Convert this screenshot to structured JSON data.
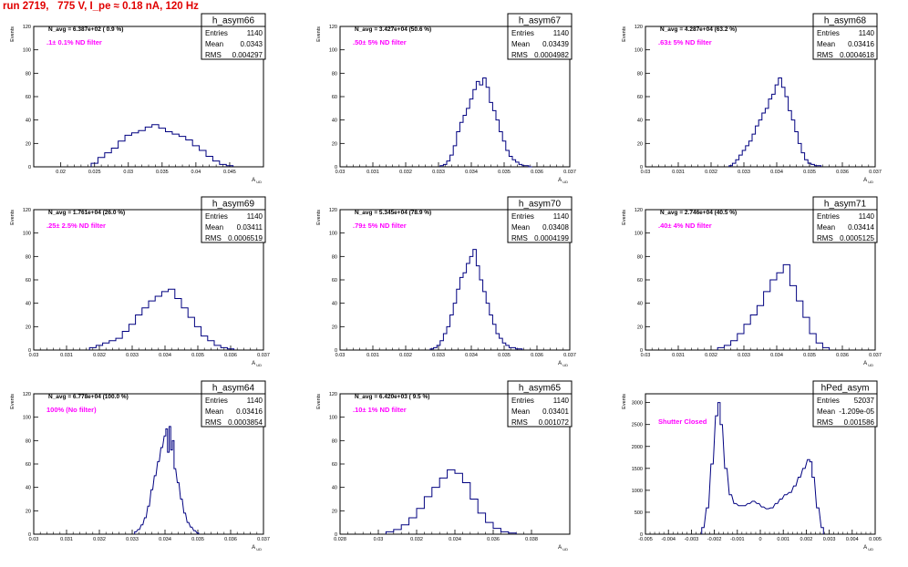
{
  "page": {
    "title": "run 2719,   775 V, I_pe ≈ 0.18 nA, 120 Hz",
    "title_color": "#e00000",
    "histogram_color": "#000080",
    "label_color": "#ff00ff"
  },
  "chart_data": [
    {
      "type": "histogram",
      "title": "h_asym66",
      "xlabel": "A_UD",
      "ylabel": "Events",
      "stats": {
        "labels": [
          "Entries",
          "Mean",
          "RMS"
        ],
        "values": [
          "1140",
          "0.0343",
          "0.004297"
        ]
      },
      "navg": "N_avg = 6.387e+02 ( 0.9 %)",
      "filter": ".1± 0.1% ND filter",
      "xlim": [
        0.016,
        0.05
      ],
      "ylim": [
        0,
        120
      ],
      "xticks": [
        0.02,
        0.025,
        0.03,
        0.035,
        0.04,
        0.045
      ],
      "xtick_labels": [
        "0.02",
        "0.025",
        "0.03",
        "0.035",
        "0.04",
        "0.045"
      ],
      "yticks": [
        0,
        20,
        40,
        60,
        80,
        100,
        120
      ],
      "x": [
        0.025,
        0.026,
        0.027,
        0.028,
        0.029,
        0.03,
        0.031,
        0.032,
        0.033,
        0.034,
        0.035,
        0.036,
        0.037,
        0.038,
        0.039,
        0.04,
        0.041,
        0.042,
        0.043,
        0.044,
        0.045
      ],
      "y": [
        3,
        8,
        12,
        16,
        22,
        27,
        29,
        31,
        34,
        36,
        33,
        30,
        28,
        26,
        23,
        18,
        14,
        9,
        5,
        2,
        1
      ]
    },
    {
      "type": "histogram",
      "title": "h_asym67",
      "xlabel": "A_UD",
      "ylabel": "Events",
      "stats": {
        "labels": [
          "Entries",
          "Mean",
          "RMS"
        ],
        "values": [
          "1140",
          "0.03439",
          "0.0004982"
        ]
      },
      "navg": "N_avg = 3.427e+04 (50.6 %)",
      "filter": ".50± 5% ND filter",
      "xlim": [
        0.03,
        0.037
      ],
      "ylim": [
        0,
        120
      ],
      "xticks": [
        0.03,
        0.031,
        0.032,
        0.033,
        0.034,
        0.035,
        0.036,
        0.037
      ],
      "xtick_labels": [
        "0.03",
        "0.031",
        "0.032",
        "0.033",
        "0.034",
        "0.035",
        "0.036",
        "0.037"
      ],
      "yticks": [
        0,
        20,
        40,
        60,
        80,
        100,
        120
      ],
      "x": [
        0.0331,
        0.0332,
        0.0333,
        0.0334,
        0.0335,
        0.0336,
        0.0337,
        0.0338,
        0.0339,
        0.034,
        0.0341,
        0.0342,
        0.0343,
        0.0344,
        0.0345,
        0.0346,
        0.0347,
        0.0348,
        0.0349,
        0.035,
        0.0351,
        0.0352,
        0.0353,
        0.0354,
        0.0355,
        0.0356,
        0.0357,
        0.0358
      ],
      "y": [
        1,
        2,
        5,
        10,
        18,
        30,
        38,
        44,
        50,
        58,
        66,
        73,
        70,
        76,
        68,
        55,
        48,
        40,
        30,
        22,
        14,
        9,
        6,
        4,
        2,
        1,
        1,
        0
      ]
    },
    {
      "type": "histogram",
      "title": "h_asym68",
      "xlabel": "A_UD",
      "ylabel": "Events",
      "stats": {
        "labels": [
          "Entries",
          "Mean",
          "RMS"
        ],
        "values": [
          "1140",
          "0.03416",
          "0.0004618"
        ]
      },
      "navg": "N_avg = 4.287e+04 (63.2 %)",
      "filter": ".63± 5% ND filter",
      "xlim": [
        0.03,
        0.037
      ],
      "ylim": [
        0,
        120
      ],
      "xticks": [
        0.03,
        0.031,
        0.032,
        0.033,
        0.034,
        0.035,
        0.036,
        0.037
      ],
      "xtick_labels": [
        "0.03",
        "0.031",
        "0.032",
        "0.033",
        "0.034",
        "0.035",
        "0.036",
        "0.037"
      ],
      "yticks": [
        0,
        20,
        40,
        60,
        80,
        100,
        120
      ],
      "x": [
        0.0326,
        0.0327,
        0.0328,
        0.0329,
        0.033,
        0.0331,
        0.0332,
        0.0333,
        0.0334,
        0.0335,
        0.0336,
        0.0337,
        0.0338,
        0.0339,
        0.034,
        0.0341,
        0.0342,
        0.0343,
        0.0344,
        0.0345,
        0.0346,
        0.0347,
        0.0348,
        0.0349,
        0.035,
        0.0351,
        0.0352,
        0.0353
      ],
      "y": [
        1,
        3,
        6,
        10,
        14,
        18,
        22,
        28,
        35,
        40,
        46,
        50,
        58,
        62,
        70,
        76,
        68,
        60,
        48,
        40,
        30,
        20,
        12,
        6,
        3,
        2,
        1,
        1
      ]
    },
    {
      "type": "histogram",
      "title": "h_asym69",
      "xlabel": "A_UD",
      "ylabel": "Events",
      "stats": {
        "labels": [
          "Entries",
          "Mean",
          "RMS"
        ],
        "values": [
          "1140",
          "0.03411",
          "0.0006519"
        ]
      },
      "navg": "N_avg = 1.761e+04 (26.0 %)",
      "filter": ".25± 2.5% ND filter",
      "xlim": [
        0.03,
        0.037
      ],
      "ylim": [
        0,
        120
      ],
      "xticks": [
        0.03,
        0.031,
        0.032,
        0.033,
        0.034,
        0.035,
        0.036,
        0.037
      ],
      "xtick_labels": [
        "0.03",
        "0.031",
        "0.032",
        "0.033",
        "0.034",
        "0.035",
        "0.036",
        "0.037"
      ],
      "yticks": [
        0,
        20,
        40,
        60,
        80,
        100,
        120
      ],
      "x": [
        0.0318,
        0.032,
        0.0322,
        0.0324,
        0.0326,
        0.0328,
        0.033,
        0.0332,
        0.0334,
        0.0336,
        0.0338,
        0.034,
        0.0342,
        0.0344,
        0.0346,
        0.0348,
        0.035,
        0.0352,
        0.0354,
        0.0356,
        0.0358,
        0.036
      ],
      "y": [
        2,
        4,
        6,
        8,
        10,
        16,
        22,
        30,
        36,
        42,
        46,
        50,
        52,
        44,
        36,
        28,
        20,
        12,
        8,
        4,
        2,
        1
      ]
    },
    {
      "type": "histogram",
      "title": "h_asym70",
      "xlabel": "A_UD",
      "ylabel": "Events",
      "stats": {
        "labels": [
          "Entries",
          "Mean",
          "RMS"
        ],
        "values": [
          "1140",
          "0.03408",
          "0.0004199"
        ]
      },
      "navg": "N_avg = 5.345e+04 (78.9 %)",
      "filter": ".79± 5% ND filter",
      "xlim": [
        0.03,
        0.037
      ],
      "ylim": [
        0,
        120
      ],
      "xticks": [
        0.03,
        0.031,
        0.032,
        0.033,
        0.034,
        0.035,
        0.036,
        0.037
      ],
      "xtick_labels": [
        "0.03",
        "0.031",
        "0.032",
        "0.033",
        "0.034",
        "0.035",
        "0.036",
        "0.037"
      ],
      "yticks": [
        0,
        20,
        40,
        60,
        80,
        100,
        120
      ],
      "x": [
        0.0328,
        0.0329,
        0.033,
        0.0331,
        0.0332,
        0.0333,
        0.0334,
        0.0335,
        0.0336,
        0.0337,
        0.0338,
        0.0339,
        0.034,
        0.0341,
        0.0342,
        0.0343,
        0.0344,
        0.0345,
        0.0346,
        0.0347,
        0.0348,
        0.0349,
        0.035,
        0.0351,
        0.0352,
        0.0353,
        0.0354,
        0.0355
      ],
      "y": [
        1,
        2,
        4,
        8,
        14,
        20,
        30,
        40,
        52,
        62,
        66,
        74,
        80,
        86,
        72,
        60,
        50,
        40,
        30,
        22,
        14,
        10,
        6,
        4,
        2,
        2,
        1,
        1
      ]
    },
    {
      "type": "histogram",
      "title": "h_asym71",
      "xlabel": "A_UD",
      "ylabel": "Events",
      "stats": {
        "labels": [
          "Entries",
          "Mean",
          "RMS"
        ],
        "values": [
          "1140",
          "0.03414",
          "0.0005125"
        ]
      },
      "navg": "N_avg = 2.746e+04 (40.5 %)",
      "filter": ".40± 4% ND filter",
      "xlim": [
        0.03,
        0.037
      ],
      "ylim": [
        0,
        120
      ],
      "xticks": [
        0.03,
        0.031,
        0.032,
        0.033,
        0.034,
        0.035,
        0.036,
        0.037
      ],
      "xtick_labels": [
        "0.03",
        "0.031",
        "0.032",
        "0.033",
        "0.034",
        "0.035",
        "0.036",
        "0.037"
      ],
      "yticks": [
        0,
        20,
        40,
        60,
        80,
        100,
        120
      ],
      "x": [
        0.0323,
        0.0325,
        0.0327,
        0.0329,
        0.0331,
        0.0333,
        0.0335,
        0.0337,
        0.0339,
        0.0341,
        0.0343,
        0.0345,
        0.0347,
        0.0349,
        0.0351,
        0.0353,
        0.0355
      ],
      "y": [
        2,
        4,
        8,
        14,
        22,
        30,
        38,
        50,
        60,
        66,
        73,
        55,
        42,
        28,
        14,
        6,
        2
      ]
    },
    {
      "type": "histogram",
      "title": "h_asym64",
      "xlabel": "A_UD",
      "ylabel": "Events",
      "stats": {
        "labels": [
          "Entries",
          "Mean",
          "RMS"
        ],
        "values": [
          "1140",
          "0.03416",
          "0.0003854"
        ]
      },
      "navg": "N_avg = 6.778e+04 (100.0 %)",
      "filter": "100% (No filter)",
      "xlim": [
        0.03,
        0.037
      ],
      "ylim": [
        0,
        120
      ],
      "xticks": [
        0.03,
        0.031,
        0.032,
        0.033,
        0.034,
        0.035,
        0.036,
        0.037
      ],
      "xtick_labels": [
        "0.03",
        "0.031",
        "0.032",
        "0.033",
        "0.034",
        "0.035",
        "0.036",
        "0.037"
      ],
      "yticks": [
        0,
        20,
        40,
        60,
        80,
        100,
        120
      ],
      "x": [
        0.0331,
        0.0332,
        0.0333,
        0.0334,
        0.0335,
        0.0336,
        0.0337,
        0.0338,
        0.0339,
        0.034,
        0.03405,
        0.0341,
        0.03415,
        0.0342,
        0.03425,
        0.0343,
        0.0344,
        0.0345,
        0.0346,
        0.0347,
        0.0348,
        0.0349,
        0.035
      ],
      "y": [
        2,
        4,
        8,
        14,
        24,
        38,
        50,
        62,
        74,
        84,
        90,
        70,
        92,
        72,
        80,
        56,
        44,
        30,
        18,
        10,
        6,
        3,
        1
      ]
    },
    {
      "type": "histogram",
      "title": "h_asym65",
      "xlabel": "A_UD",
      "ylabel": "Events",
      "stats": {
        "labels": [
          "Entries",
          "Mean",
          "RMS"
        ],
        "values": [
          "1140",
          "0.03401",
          "0.001072"
        ]
      },
      "navg": "N_avg = 6.420e+03 ( 9.5 %)",
      "filter": ".10± 1% ND filter",
      "xlim": [
        0.028,
        0.04
      ],
      "ylim": [
        0,
        120
      ],
      "xticks": [
        0.028,
        0.03,
        0.032,
        0.034,
        0.036,
        0.038
      ],
      "xtick_labels": [
        "0.028",
        "0.03",
        "0.032",
        "0.034",
        "0.036",
        "0.038"
      ],
      "yticks": [
        0,
        20,
        40,
        60,
        80,
        100,
        120
      ],
      "x": [
        0.0306,
        0.031,
        0.0314,
        0.0318,
        0.0322,
        0.0326,
        0.033,
        0.0334,
        0.0338,
        0.0342,
        0.0346,
        0.035,
        0.0354,
        0.0358,
        0.0362,
        0.0366,
        0.037
      ],
      "y": [
        2,
        4,
        8,
        14,
        22,
        32,
        40,
        48,
        55,
        52,
        44,
        30,
        18,
        10,
        5,
        2,
        1
      ]
    },
    {
      "type": "histogram",
      "title": "hPed_asym",
      "xlabel": "A_UD",
      "ylabel": "Events",
      "stats": {
        "labels": [
          "Entries",
          "Mean",
          "RMS"
        ],
        "values": [
          "52037",
          "-1.209e-05",
          "0.001586"
        ]
      },
      "navg": "",
      "filter": "Shutter Closed",
      "xlim": [
        -0.005,
        0.005
      ],
      "ylim": [
        0,
        3200
      ],
      "xticks": [
        -0.005,
        -0.004,
        -0.003,
        -0.002,
        -0.001,
        0,
        0.001,
        0.002,
        0.003,
        0.004,
        0.005
      ],
      "xtick_labels": [
        "-0.005",
        "-0.004",
        "-0.003",
        "-0.002",
        "-0.001",
        "0",
        "0.001",
        "0.002",
        "0.003",
        "0.004",
        "0.005"
      ],
      "yticks": [
        0,
        500,
        1000,
        1500,
        2000,
        2500,
        3000
      ],
      "x": [
        -0.0025,
        -0.0023,
        -0.0021,
        -0.0019,
        -0.0018,
        -0.0017,
        -0.0015,
        -0.0013,
        -0.0011,
        -0.0009,
        -0.0007,
        -0.0005,
        -0.0003,
        -0.0001,
        0.0001,
        0.0003,
        0.0005,
        0.0007,
        0.0009,
        0.0011,
        0.0013,
        0.0015,
        0.0017,
        0.0019,
        0.0021,
        0.0022,
        0.0023,
        0.0025,
        0.0027
      ],
      "y": [
        150,
        600,
        1600,
        2700,
        3000,
        2500,
        1500,
        900,
        700,
        650,
        650,
        700,
        750,
        700,
        620,
        580,
        600,
        700,
        800,
        900,
        950,
        1100,
        1300,
        1500,
        1700,
        1650,
        1300,
        600,
        150
      ]
    }
  ]
}
